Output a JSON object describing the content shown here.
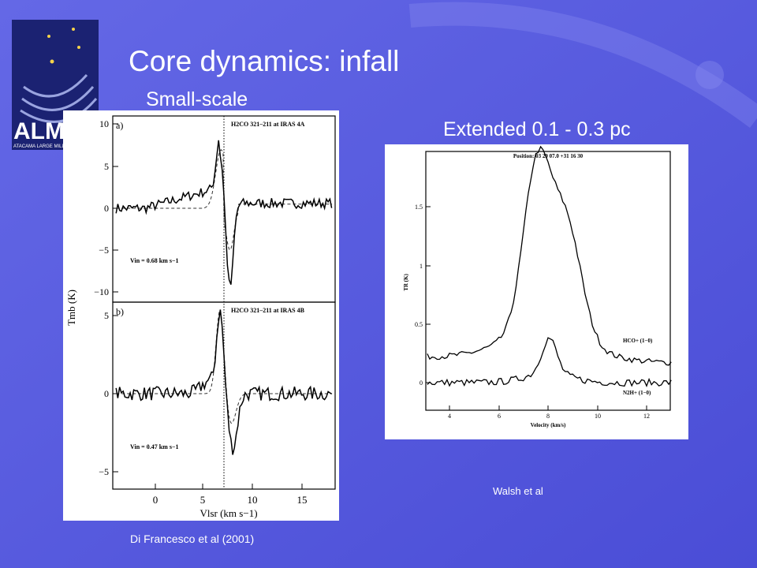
{
  "slide": {
    "title": "Core dynamics: infall",
    "subtitle": "Small-scale",
    "heading_right": "Extended  0.1 - 0.3 pc",
    "caption_left": "Di Francesco et al (2001)",
    "caption_right": "Walsh et al",
    "logo": {
      "text": "ALM",
      "tagline": "ATACAMA LARGE MILLI"
    }
  },
  "left_figure": {
    "panels": [
      {
        "label": "a)",
        "line": "H2CO 321–211 at IRAS 4A",
        "vin": "Vin = 0.68 km s−1",
        "yticks": [
          "10",
          "5",
          "0",
          "−5",
          "−10"
        ]
      },
      {
        "label": "b)",
        "line": "H2CO 321–211 at IRAS 4B",
        "vin": "Vin = 0.47 km s−1",
        "yticks": [
          "5",
          "0",
          "−5"
        ]
      }
    ],
    "xticks": [
      "0",
      "5",
      "10",
      "15"
    ],
    "xlabel": "Vlsr (km s−1)",
    "ylabel": "Tmb (K)"
  },
  "right_figure": {
    "header": "Position: 03 29 07.0 +31 16 30",
    "yticks": [
      "0",
      "0.5",
      "1",
      "1.5"
    ],
    "xticks": [
      "4",
      "6",
      "8",
      "10",
      "12"
    ],
    "xlabel": "Velocity (km/s)",
    "ylabel": "TR (K)",
    "series_labels": [
      "HCO+ (1−0)",
      "N2H+ (1−0)"
    ]
  }
}
